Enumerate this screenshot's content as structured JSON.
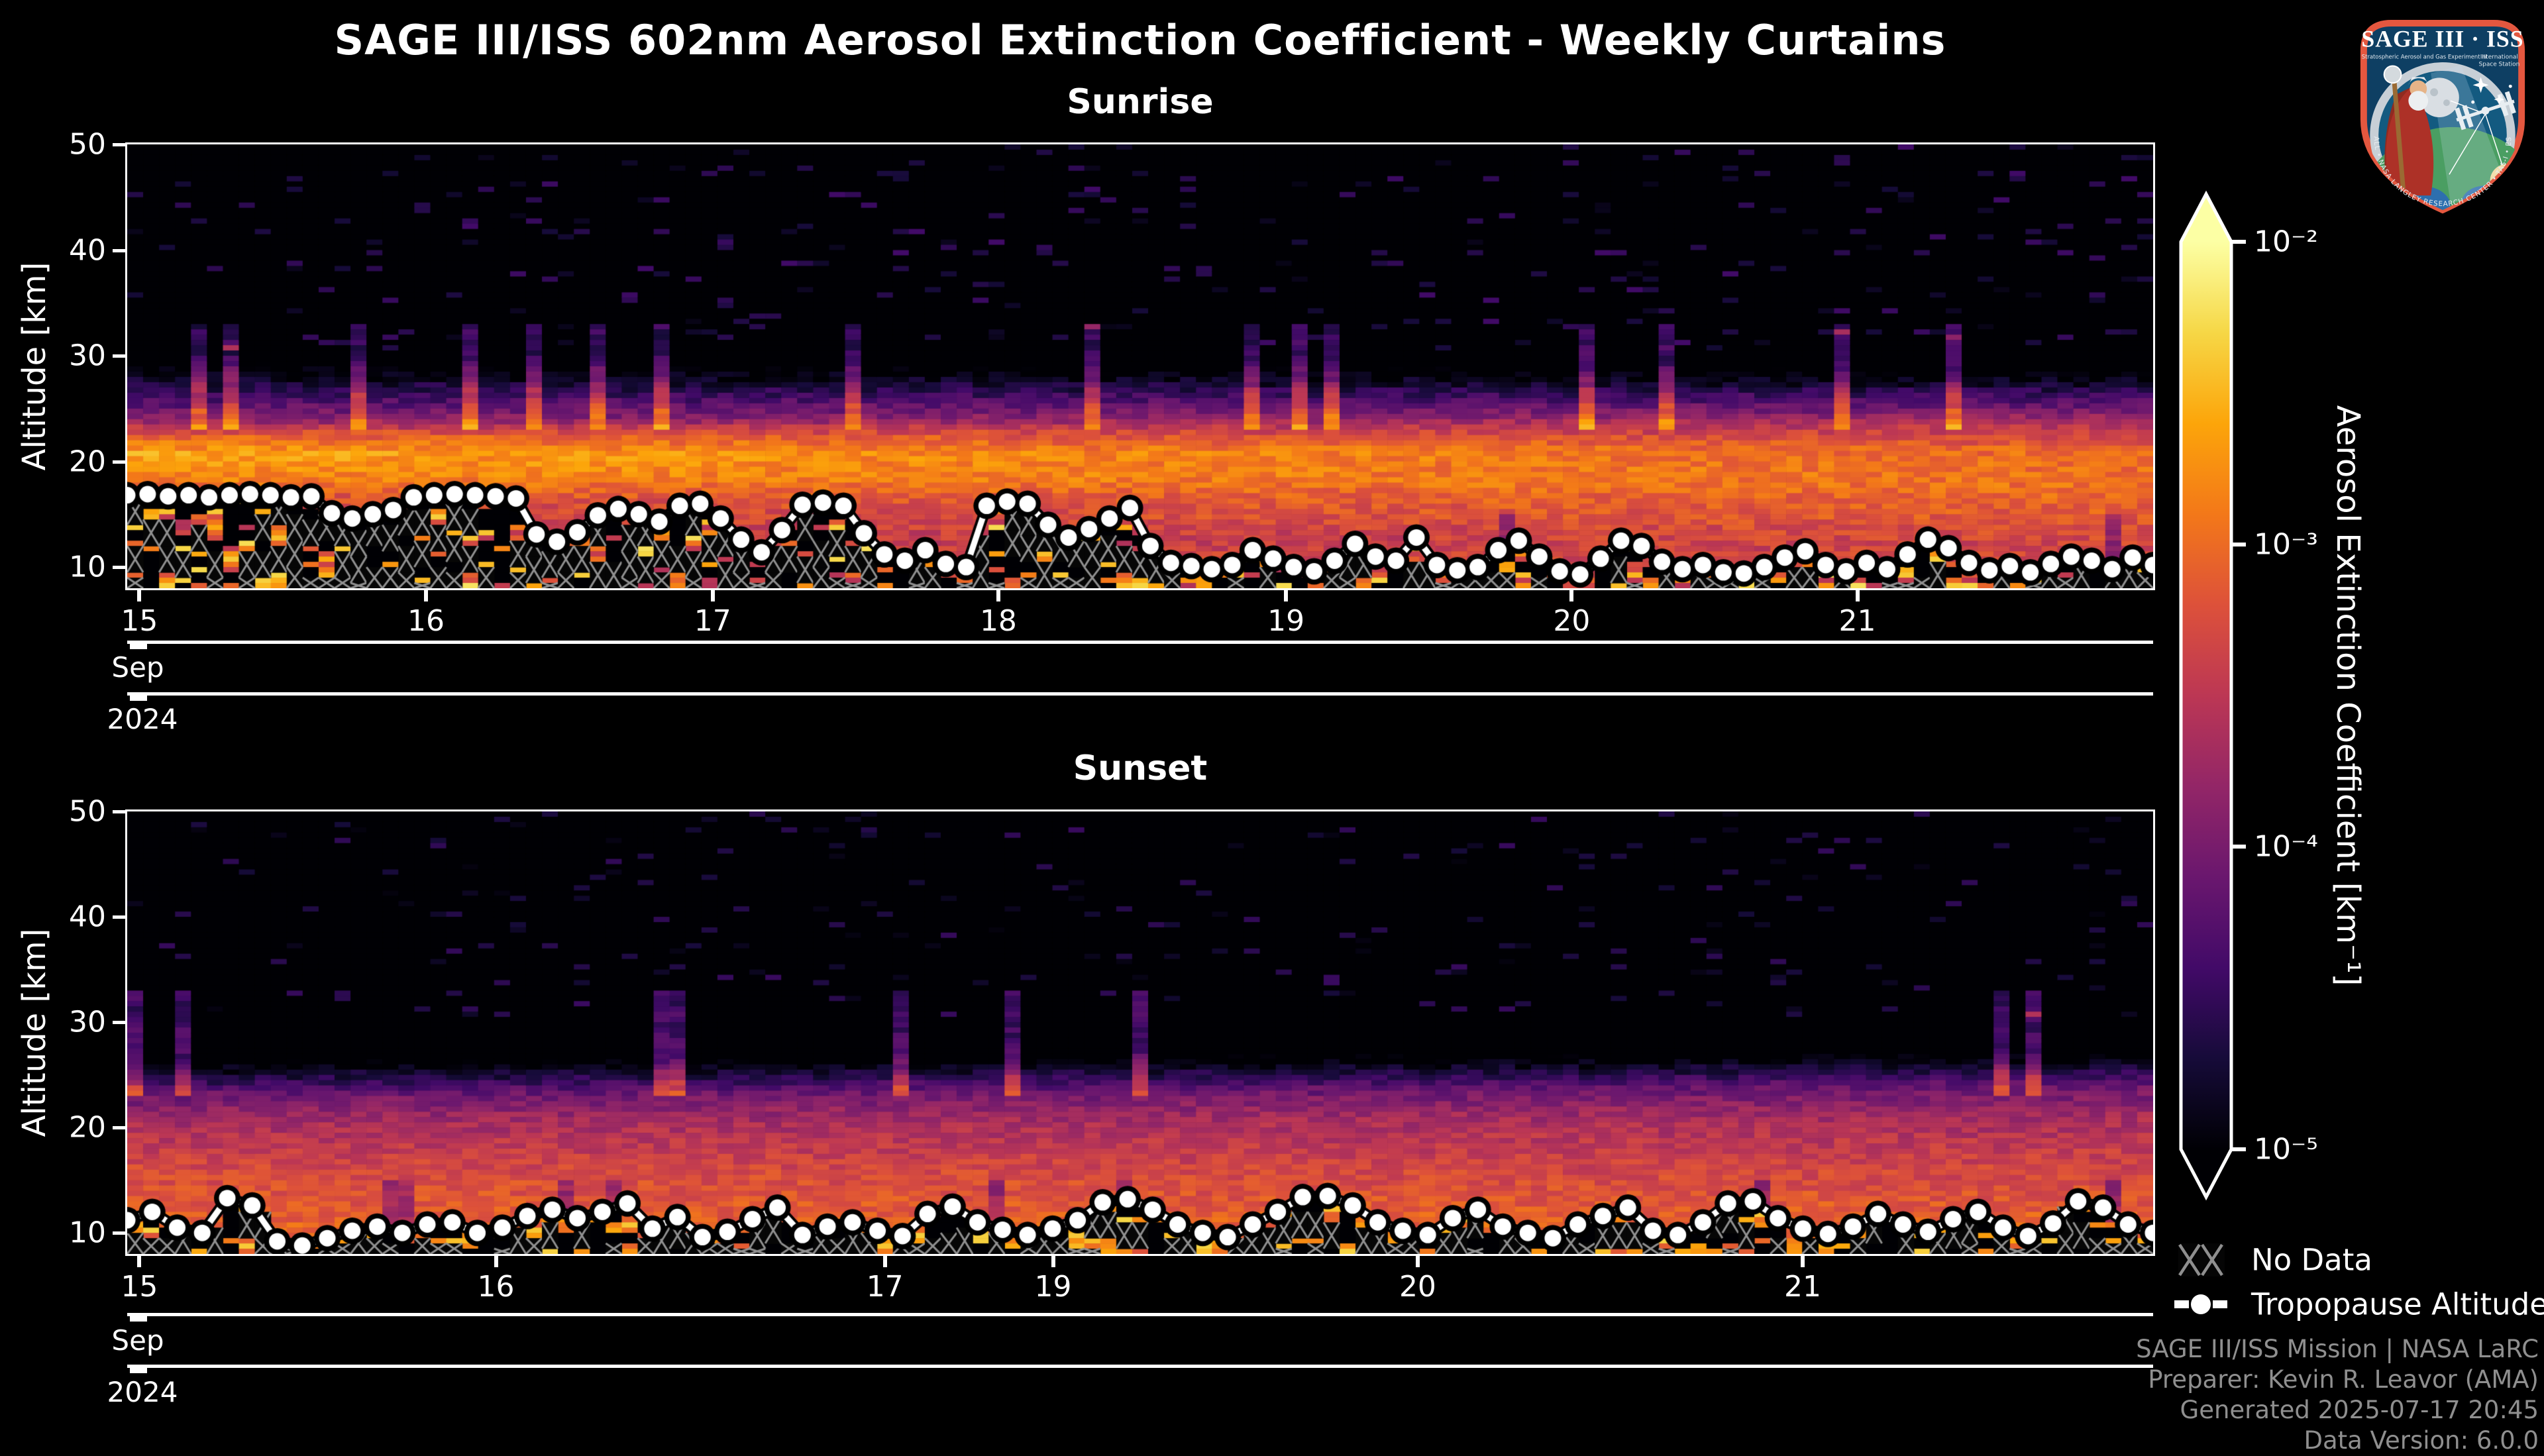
{
  "title": "SAGE III/ISS 602nm Aerosol Extinction Coefficient - Weekly Curtains",
  "colorbar": {
    "label": "Aerosol Extinction Coefficient [km⁻¹]",
    "ticks": [
      "10⁻²",
      "10⁻³",
      "10⁻⁴",
      "10⁻⁵"
    ],
    "tick_values": [
      0.01,
      0.001,
      0.0001,
      1e-05
    ],
    "colormap": "inferno",
    "stops": [
      [
        0,
        "#000004"
      ],
      [
        0.1,
        "#160b39"
      ],
      [
        0.2,
        "#420a68"
      ],
      [
        0.3,
        "#6a176e"
      ],
      [
        0.4,
        "#932667"
      ],
      [
        0.5,
        "#bc3754"
      ],
      [
        0.6,
        "#dd513a"
      ],
      [
        0.7,
        "#f37819"
      ],
      [
        0.8,
        "#fca50a"
      ],
      [
        0.9,
        "#f6d746"
      ],
      [
        1,
        "#fcffa4"
      ]
    ]
  },
  "legend": {
    "no_data": "No Data",
    "tropopause": "Tropopause Altitude"
  },
  "footer": {
    "lines": [
      "SAGE III/ISS Mission | NASA LaRC",
      "Preparer: Kevin R. Leavor (AMA)",
      "Generated 2025-07-17 20:45",
      "Data Version: 6.0.0"
    ]
  },
  "logo": {
    "title": "SAGE III · ISS",
    "subtitle_left": "Stratospheric Aerosol and Gas Experiment III",
    "subtitle_right1": "International",
    "subtitle_right2": "Space Station",
    "ring_text": "BALL • NASA LANGLEY RESEARCH CENTER • TAS-I • ESA"
  },
  "chart_data": [
    {
      "type": "heatmap",
      "title": "Sunrise",
      "ylabel": "Altitude [km]",
      "ylim": [
        8,
        50
      ],
      "y_ticks": [
        50,
        40,
        30,
        20,
        10
      ],
      "x_range": [
        "2024-09-15",
        "2024-09-22"
      ],
      "x_axis": {
        "month_label": "Sep",
        "year_label": "2024",
        "day_ticks": [
          {
            "label": "15",
            "f": 0.006
          },
          {
            "label": "16",
            "f": 0.1475
          },
          {
            "label": "17",
            "f": 0.289
          },
          {
            "label": "18",
            "f": 0.43
          },
          {
            "label": "19",
            "f": 0.572
          },
          {
            "label": "20",
            "f": 0.713
          },
          {
            "label": "21",
            "f": 0.854
          }
        ]
      },
      "value_scale": {
        "type": "log",
        "vmin": 1e-05,
        "vmax": 0.01,
        "units": "km⁻¹"
      },
      "seed": 42,
      "model": {
        "profile_start": [
          [
            8,
            -3.15
          ],
          [
            13,
            -3.55
          ],
          [
            16.5,
            -3.25
          ],
          [
            18.5,
            -2.8
          ],
          [
            20.8,
            -2.62
          ],
          [
            22.5,
            -3.1
          ],
          [
            24,
            -3.9
          ],
          [
            26.5,
            -4.5
          ],
          [
            30,
            -5.4
          ],
          [
            50,
            -5.62
          ]
        ],
        "profile_end": [
          [
            8,
            -3.25
          ],
          [
            12,
            -3.35
          ],
          [
            15,
            -3.12
          ],
          [
            18,
            -2.95
          ],
          [
            21,
            -3.05
          ],
          [
            23,
            -3.45
          ],
          [
            25,
            -4.05
          ],
          [
            29,
            -5.3
          ],
          [
            50,
            -5.62
          ]
        ],
        "streak_top_p": 0.055,
        "streak_v": -4.65,
        "plume_p": 0.1,
        "col_anomaly_p": 0.03,
        "below_trop": {
          "nodata_p": 0.28,
          "dark_p": 0.2,
          "bright_lo": -3.6,
          "bright_hi": -2.2
        },
        "noise": 0.22
      },
      "tropopause_km": [
        16.8,
        16.9,
        16.7,
        16.8,
        16.6,
        16.8,
        16.9,
        16.8,
        16.6,
        16.7,
        15.1,
        14.6,
        15.0,
        15.4,
        16.6,
        16.8,
        16.9,
        16.8,
        16.7,
        16.5,
        13.1,
        12.4,
        13.3,
        14.9,
        15.5,
        15.0,
        14.3,
        15.8,
        16.0,
        14.6,
        12.6,
        11.4,
        13.5,
        15.9,
        16.1,
        15.8,
        13.2,
        11.2,
        10.6,
        11.6,
        10.3,
        10.0,
        15.8,
        16.2,
        16.0,
        14.0,
        12.8,
        13.6,
        14.6,
        15.6,
        12.0,
        10.4,
        10.1,
        9.8,
        10.2,
        11.6,
        10.8,
        10.0,
        9.6,
        10.6,
        12.2,
        11.0,
        10.6,
        12.8,
        10.2,
        9.7,
        10.0,
        11.6,
        12.5,
        11.0,
        9.6,
        9.3,
        10.8,
        12.5,
        12.0,
        10.5,
        9.8,
        10.2,
        9.5,
        9.4,
        10.0,
        10.9,
        11.5,
        10.2,
        9.6,
        10.4,
        9.8,
        11.2,
        12.6,
        11.8,
        10.4,
        9.7,
        10.1,
        9.5,
        10.3,
        11.0,
        10.6,
        9.8,
        10.9,
        10.2
      ]
    },
    {
      "type": "heatmap",
      "title": "Sunset",
      "ylabel": "Altitude [km]",
      "ylim": [
        8,
        50
      ],
      "y_ticks": [
        50,
        40,
        30,
        20,
        10
      ],
      "x_range": [
        "2024-09-15",
        "2024-09-22"
      ],
      "x_axis": {
        "month_label": "Sep",
        "year_label": "2024",
        "day_ticks": [
          {
            "label": "15",
            "f": 0.006
          },
          {
            "label": "16",
            "f": 0.182
          },
          {
            "label": "17",
            "f": 0.374
          },
          {
            "label": "19",
            "f": 0.457
          },
          {
            "label": "20",
            "f": 0.637
          },
          {
            "label": "21",
            "f": 0.827
          }
        ]
      },
      "value_scale": {
        "type": "log",
        "vmin": 1e-05,
        "vmax": 0.01,
        "units": "km⁻¹"
      },
      "seed": 7,
      "model": {
        "profile_start": [
          [
            8,
            -3.0
          ],
          [
            11,
            -3.08
          ],
          [
            16,
            -3.3
          ],
          [
            20,
            -3.62
          ],
          [
            23,
            -4.05
          ],
          [
            26.5,
            -5.25
          ],
          [
            50,
            -5.6
          ]
        ],
        "profile_end": [
          [
            8,
            -2.95
          ],
          [
            12,
            -3.12
          ],
          [
            17,
            -3.38
          ],
          [
            21,
            -3.66
          ],
          [
            24,
            -4.15
          ],
          [
            27.5,
            -5.3
          ],
          [
            50,
            -5.6
          ]
        ],
        "streak_top_p": 0.05,
        "streak_v": -4.7,
        "plume_p": 0.07,
        "col_anomaly_p": 0.06,
        "below_trop": {
          "nodata_p": 0.3,
          "dark_p": 0.25,
          "bright_lo": -3.2,
          "bright_hi": -2.3
        },
        "noise": 0.2
      },
      "tropopause_km": [
        11.2,
        12.0,
        10.5,
        10.0,
        13.3,
        12.6,
        9.2,
        8.8,
        9.5,
        10.2,
        10.6,
        10.0,
        10.8,
        11.0,
        10.0,
        10.5,
        11.6,
        12.2,
        11.4,
        12.0,
        12.8,
        10.4,
        11.5,
        9.6,
        10.1,
        11.3,
        12.4,
        9.8,
        10.6,
        11.0,
        10.2,
        9.7,
        11.8,
        12.5,
        11.0,
        10.3,
        9.8,
        10.4,
        11.2,
        12.9,
        13.2,
        12.2,
        10.8,
        10.0,
        9.6,
        10.8,
        12.0,
        13.4,
        13.5,
        12.6,
        11.0,
        10.2,
        9.8,
        11.4,
        12.2,
        10.6,
        10.0,
        9.5,
        10.8,
        11.6,
        12.4,
        10.2,
        9.8,
        11.0,
        12.8,
        13.0,
        11.4,
        10.4,
        9.9,
        10.6,
        11.8,
        10.8,
        10.1,
        11.3,
        12.0,
        10.5,
        9.7,
        10.9,
        13.0,
        12.4,
        10.8,
        10.0
      ]
    }
  ]
}
